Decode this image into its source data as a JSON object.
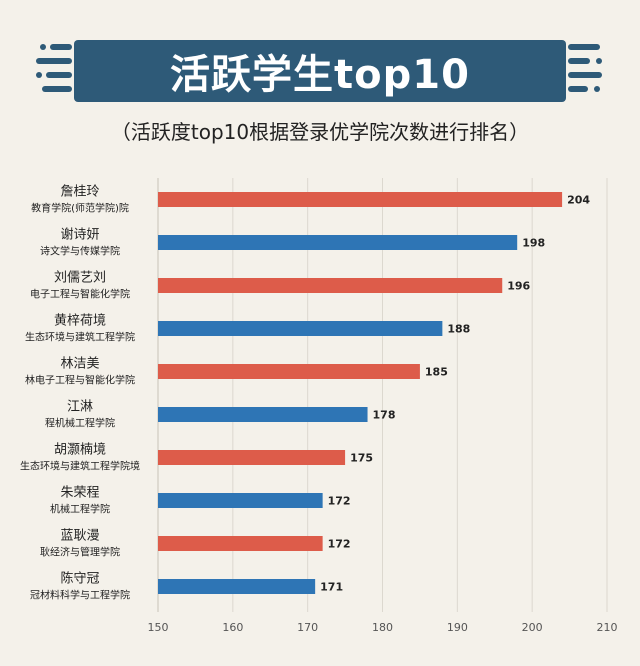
{
  "header": {
    "title": "活跃学生top10",
    "subtitle": "（活跃度top10根据登录优学院次数进行排名）"
  },
  "colors": {
    "banner": "#2e5a78",
    "red_bar": "#dd5c4a",
    "blue_bar": "#2e75b5",
    "background": "#f4f1ea"
  },
  "chart_data": {
    "type": "bar",
    "orientation": "horizontal",
    "categories": [
      {
        "name": "詹桂玲",
        "dept": "教育学院(师范学院)院",
        "value": 204,
        "color": "red"
      },
      {
        "name": "谢诗妍",
        "dept": "诗文学与传媒学院",
        "value": 198,
        "color": "blue"
      },
      {
        "name": "刘儒艺刘",
        "dept": "电子工程与智能化学院",
        "value": 196,
        "color": "red"
      },
      {
        "name": "黄梓荷境",
        "dept": "生态环境与建筑工程学院",
        "value": 188,
        "color": "blue"
      },
      {
        "name": "林洁美",
        "dept": "林电子工程与智能化学院",
        "value": 185,
        "color": "red"
      },
      {
        "name": "江淋",
        "dept": "程机械工程学院",
        "value": 178,
        "color": "blue"
      },
      {
        "name": "胡灏楠境",
        "dept": "生态环境与建筑工程学院境",
        "value": 175,
        "color": "red"
      },
      {
        "name": "朱荣程",
        "dept": "机械工程学院",
        "value": 172,
        "color": "blue"
      },
      {
        "name": "蓝耿漫",
        "dept": "耿经济与管理学院",
        "value": 172,
        "color": "red"
      },
      {
        "name": "陈守冠",
        "dept": "冠材料科学与工程学院",
        "value": 171,
        "color": "blue"
      }
    ],
    "xlim": [
      150,
      210
    ],
    "xticks": [
      150,
      160,
      170,
      180,
      190,
      200,
      210
    ],
    "grid": true,
    "legend": "none"
  }
}
